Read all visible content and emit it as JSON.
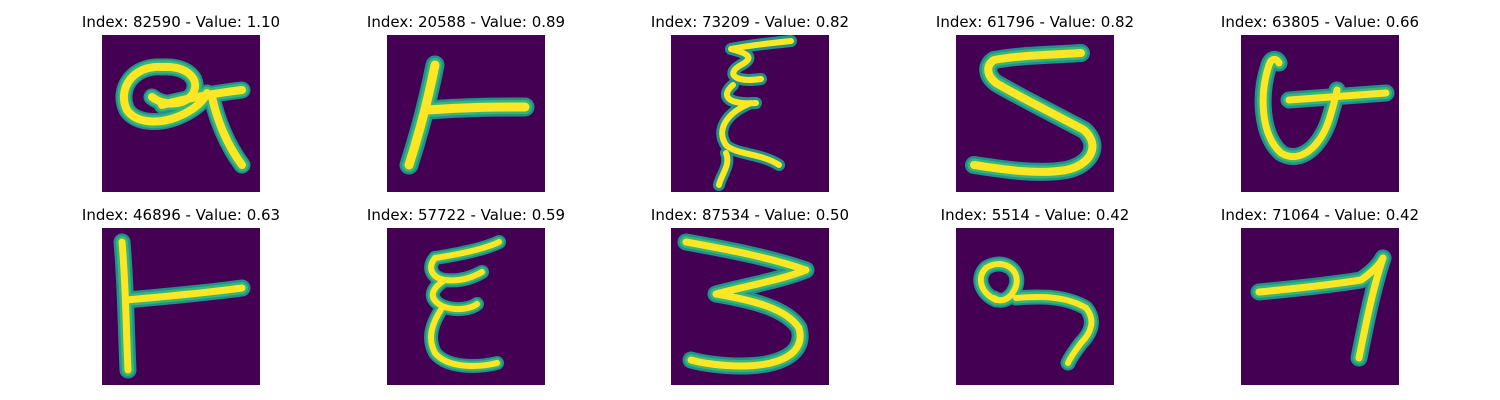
{
  "panels": [
    {
      "index": "82590",
      "value": "1.10",
      "title": "Index: 82590 - Value: 1.10"
    },
    {
      "index": "20588",
      "value": "0.89",
      "title": "Index: 20588 - Value: 0.89"
    },
    {
      "index": "73209",
      "value": "0.82",
      "title": "Index: 73209 - Value: 0.82"
    },
    {
      "index": "61796",
      "value": "0.82",
      "title": "Index: 61796 - Value: 0.82"
    },
    {
      "index": "63805",
      "value": "0.66",
      "title": "Index: 63805 - Value: 0.66"
    },
    {
      "index": "46896",
      "value": "0.63",
      "title": "Index: 46896 - Value: 0.63"
    },
    {
      "index": "57722",
      "value": "0.59",
      "title": "Index: 57722 - Value: 0.59"
    },
    {
      "index": "87534",
      "value": "0.50",
      "title": "Index: 87534 - Value: 0.50"
    },
    {
      "index": "5514",
      "value": "0.42",
      "title": "Index: 5514 - Value: 0.42"
    },
    {
      "index": "71064",
      "value": "0.42",
      "title": "Index: 71064 - Value: 0.42"
    }
  ],
  "colors": {
    "background": "#440154",
    "stroke_core": "#fde725",
    "stroke_edge": "#35b779",
    "stroke_halo": "#21918c"
  }
}
